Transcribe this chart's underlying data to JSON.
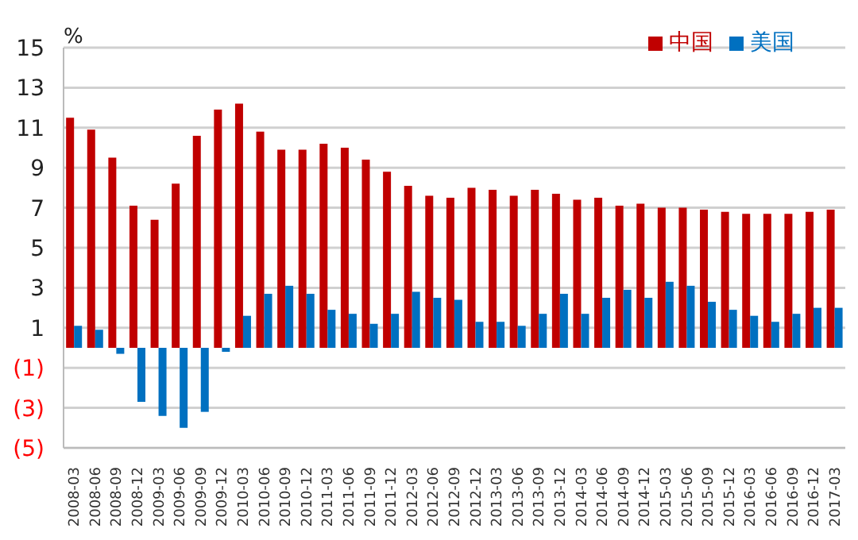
{
  "chart_data": {
    "type": "bar",
    "ylabel": "%",
    "categories": [
      "2008-03",
      "2008-06",
      "2008-09",
      "2008-12",
      "2009-03",
      "2009-06",
      "2009-09",
      "2009-12",
      "2010-03",
      "2010-06",
      "2010-09",
      "2010-12",
      "2011-03",
      "2011-06",
      "2011-09",
      "2011-12",
      "2012-03",
      "2012-06",
      "2012-09",
      "2012-12",
      "2013-03",
      "2013-06",
      "2013-09",
      "2013-12",
      "2014-03",
      "2014-06",
      "2014-09",
      "2014-12",
      "2015-03",
      "2015-06",
      "2015-09",
      "2015-12",
      "2016-03",
      "2016-06",
      "2016-09",
      "2016-12",
      "2017-03"
    ],
    "series": [
      {
        "name": "中国",
        "color": "#c00000",
        "values": [
          11.5,
          10.9,
          9.5,
          7.1,
          6.4,
          8.2,
          10.6,
          11.9,
          12.2,
          10.8,
          9.9,
          9.9,
          10.2,
          10.0,
          9.4,
          8.8,
          8.1,
          7.6,
          7.5,
          8.0,
          7.9,
          7.6,
          7.9,
          7.7,
          7.4,
          7.5,
          7.1,
          7.2,
          7.0,
          7.0,
          6.9,
          6.8,
          6.7,
          6.7,
          6.7,
          6.8,
          6.9
        ]
      },
      {
        "name": "美国",
        "color": "#0070c0",
        "values": [
          1.1,
          0.9,
          -0.3,
          -2.7,
          -3.4,
          -4.0,
          -3.2,
          -0.2,
          1.6,
          2.7,
          3.1,
          2.7,
          1.9,
          1.7,
          1.2,
          1.7,
          2.8,
          2.5,
          2.4,
          1.3,
          1.3,
          1.1,
          1.7,
          2.7,
          1.7,
          2.5,
          2.9,
          2.5,
          3.3,
          3.1,
          2.3,
          1.9,
          1.6,
          1.3,
          1.7,
          2.0,
          2.0
        ]
      }
    ],
    "ylim": [
      -5,
      15
    ],
    "yticks": [
      {
        "value": -5,
        "label": "(5)"
      },
      {
        "value": -3,
        "label": "(3)"
      },
      {
        "value": -1,
        "label": "(1)"
      },
      1,
      3,
      5,
      7,
      9,
      11,
      13,
      15
    ],
    "grid": "y",
    "legend": "top right"
  }
}
